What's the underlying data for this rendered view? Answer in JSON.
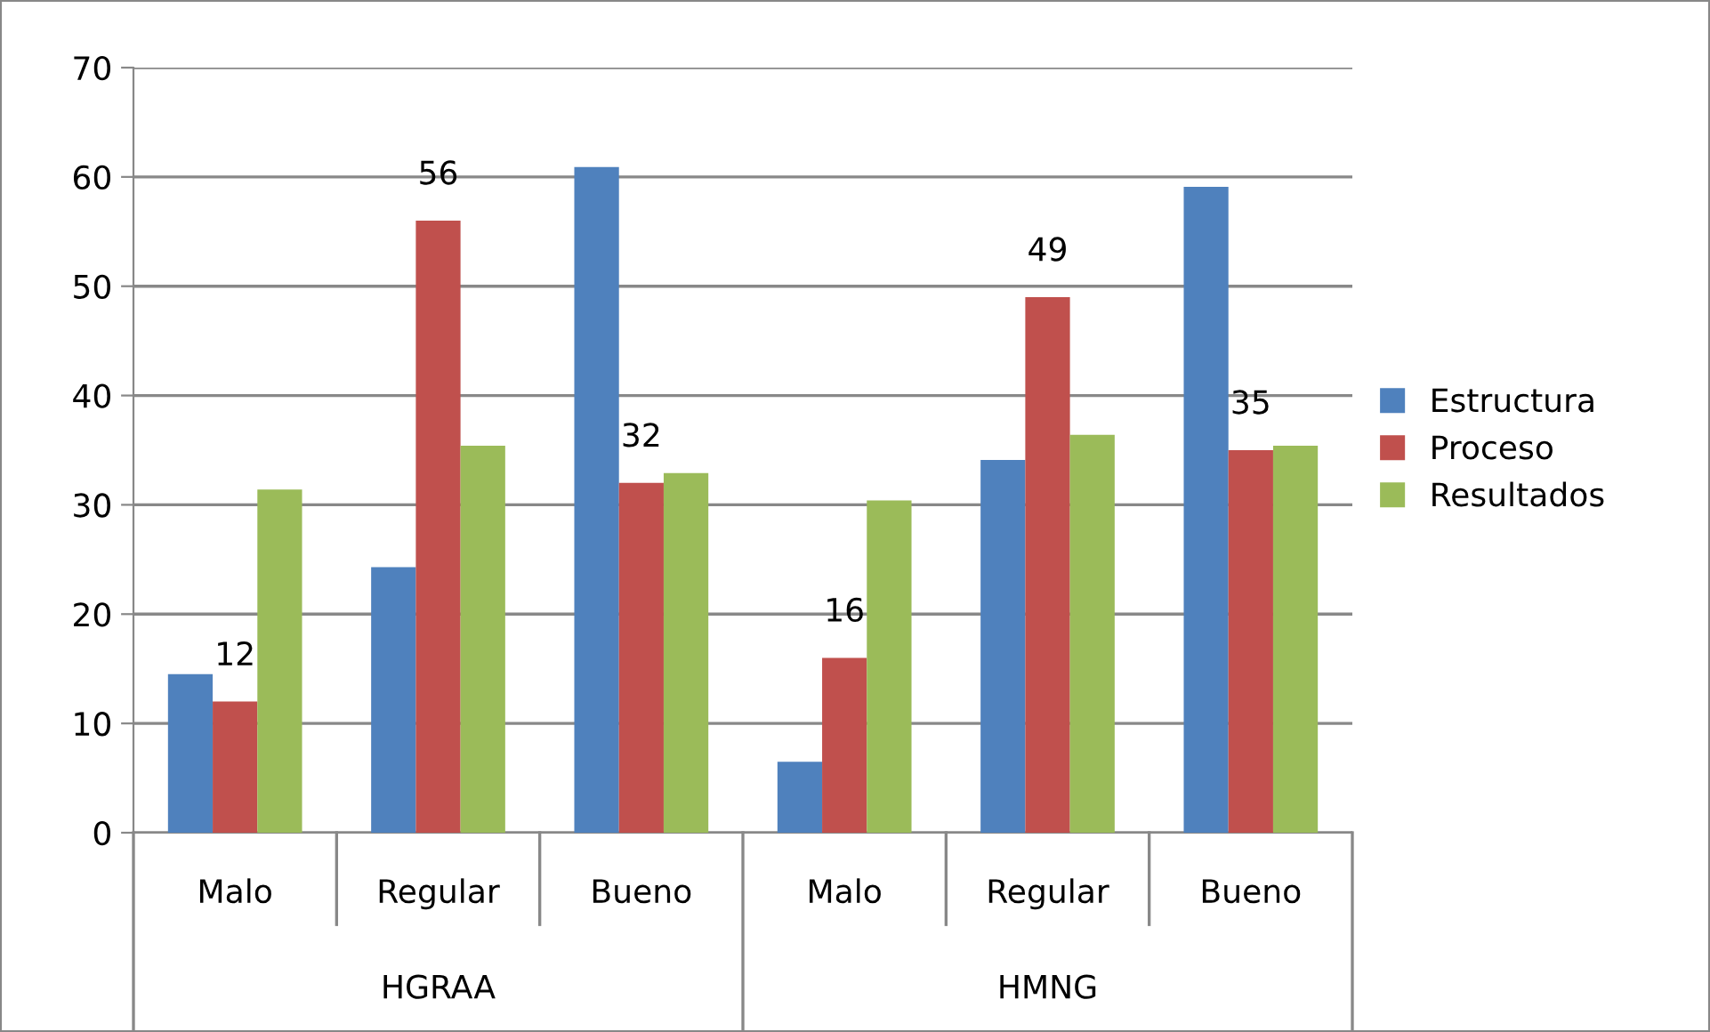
{
  "chart_data": {
    "type": "bar",
    "categories": [
      "Malo",
      "Regular",
      "Bueno",
      "Malo",
      "Regular",
      "Bueno"
    ],
    "series": [
      {
        "name": "Estructura",
        "color": "#4f81bd",
        "values": [
          14.5,
          24.3,
          60.9,
          6.5,
          34.1,
          59.1
        ]
      },
      {
        "name": "Proceso",
        "color": "#c0504d",
        "values": [
          12,
          56,
          32,
          16,
          49,
          35
        ],
        "value_labels": [
          "12",
          "56",
          "32",
          "16",
          "49",
          "35"
        ]
      },
      {
        "name": "Resultados",
        "color": "#9bbb59",
        "values": [
          31.4,
          35.4,
          32.9,
          30.4,
          36.4,
          35.4
        ]
      }
    ],
    "annotations": [
      "HGRAA",
      "HMNG"
    ],
    "ylim": [
      0,
      70
    ],
    "yticks": [
      0,
      10,
      20,
      30,
      40,
      50,
      60,
      70
    ],
    "grid": "y",
    "legend": "right"
  }
}
